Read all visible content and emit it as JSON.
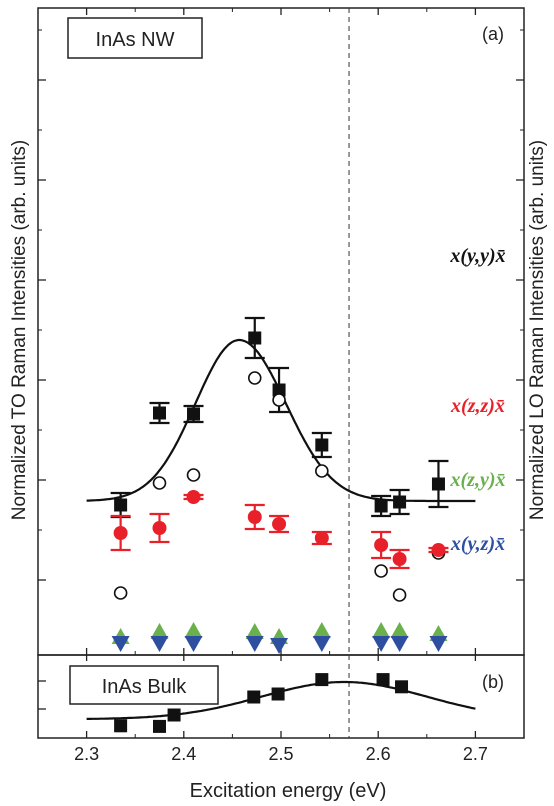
{
  "chart_data": [
    {
      "panel": "a",
      "type": "scatter",
      "panel_label": "(a)",
      "sample_label": "InAs NW",
      "ylabel_left": "Normalized TO Raman Intensities (arb. units)",
      "ylabel_right": "Normalized LO Raman Intensities (arb. units)",
      "xlim": [
        2.25,
        2.75
      ],
      "grid": false,
      "vertical_dashed_line_x": 2.57,
      "series": [
        {
          "name": "x(y,y)x̄",
          "marker": "filled-square",
          "color": "#111111",
          "points": [
            {
              "x": 2.335,
              "y": 0.75,
              "err": 0.12
            },
            {
              "x": 2.375,
              "y": 1.67,
              "err": 0.1
            },
            {
              "x": 2.41,
              "y": 1.66,
              "err": 0.08
            },
            {
              "x": 2.473,
              "y": 2.42,
              "err": 0.2
            },
            {
              "x": 2.498,
              "y": 1.9,
              "err": 0.22
            },
            {
              "x": 2.542,
              "y": 1.35,
              "err": 0.12
            },
            {
              "x": 2.603,
              "y": 0.74,
              "err": 0.1
            },
            {
              "x": 2.622,
              "y": 0.78,
              "err": 0.12
            },
            {
              "x": 2.662,
              "y": 0.96,
              "err": 0.23
            }
          ]
        },
        {
          "name": "x(y,y)x̄ (LO)",
          "marker": "open-circle",
          "color": "#111111",
          "points": [
            {
              "x": 2.335,
              "y": -0.13
            },
            {
              "x": 2.375,
              "y": 0.97
            },
            {
              "x": 2.41,
              "y": 1.05
            },
            {
              "x": 2.473,
              "y": 2.02
            },
            {
              "x": 2.498,
              "y": 1.8
            },
            {
              "x": 2.542,
              "y": 1.09
            },
            {
              "x": 2.603,
              "y": 0.09
            },
            {
              "x": 2.622,
              "y": -0.15
            },
            {
              "x": 2.662,
              "y": 0.27
            }
          ]
        },
        {
          "name": "x(z,z)x̄",
          "marker": "filled-circle",
          "color": "#e8202a",
          "points": [
            {
              "x": 2.335,
              "y": 0.47,
              "err": 0.17
            },
            {
              "x": 2.375,
              "y": 0.52,
              "err": 0.14
            },
            {
              "x": 2.41,
              "y": 0.83,
              "err": 0.02
            },
            {
              "x": 2.473,
              "y": 0.63,
              "err": 0.12
            },
            {
              "x": 2.498,
              "y": 0.56,
              "err": 0.08
            },
            {
              "x": 2.542,
              "y": 0.42,
              "err": 0.06
            },
            {
              "x": 2.603,
              "y": 0.35,
              "err": 0.13
            },
            {
              "x": 2.622,
              "y": 0.21,
              "err": 0.09
            },
            {
              "x": 2.662,
              "y": 0.3,
              "err": 0.02
            }
          ]
        },
        {
          "name": "x(z,y)x̄",
          "marker": "triangle-up",
          "color": "#6ab04c",
          "points": [
            {
              "x": 2.335,
              "y": -0.58
            },
            {
              "x": 2.375,
              "y": -0.53
            },
            {
              "x": 2.41,
              "y": -0.52
            },
            {
              "x": 2.473,
              "y": -0.53
            },
            {
              "x": 2.498,
              "y": -0.58
            },
            {
              "x": 2.542,
              "y": -0.52
            },
            {
              "x": 2.603,
              "y": -0.52
            },
            {
              "x": 2.622,
              "y": -0.52
            },
            {
              "x": 2.662,
              "y": -0.55
            }
          ]
        },
        {
          "name": "x(y,z)x̄",
          "marker": "triangle-down",
          "color": "#2e4fa0",
          "points": [
            {
              "x": 2.335,
              "y": -0.62
            },
            {
              "x": 2.375,
              "y": -0.62
            },
            {
              "x": 2.41,
              "y": -0.62
            },
            {
              "x": 2.473,
              "y": -0.62
            },
            {
              "x": 2.498,
              "y": -0.64
            },
            {
              "x": 2.542,
              "y": -0.62
            },
            {
              "x": 2.603,
              "y": -0.62
            },
            {
              "x": 2.622,
              "y": -0.62
            },
            {
              "x": 2.662,
              "y": -0.62
            }
          ]
        }
      ],
      "fit_curve": {
        "color": "#111111",
        "baseline": 0.79,
        "amplitude": 1.61,
        "center": 2.457,
        "left_width": 0.045,
        "right_width": 0.048,
        "x_range": [
          2.3,
          2.7
        ]
      },
      "series_labels": [
        {
          "text": "x(y,y)x̄",
          "color": "#111111"
        },
        {
          "text": "x(z,z)x̄",
          "color": "#e8202a"
        },
        {
          "text": "x(z,y)x̄",
          "color": "#6ab04c"
        },
        {
          "text": "x(y,z)x̄",
          "color": "#2e4fa0"
        }
      ]
    },
    {
      "panel": "b",
      "type": "scatter",
      "panel_label": "(b)",
      "sample_label": "InAs Bulk",
      "xlabel": "Excitation energy (eV)",
      "xlim": [
        2.25,
        2.75
      ],
      "xticks": [
        "2.3",
        "2.4",
        "2.5",
        "2.6",
        "2.7"
      ],
      "grid": false,
      "series": [
        {
          "name": "InAs Bulk",
          "marker": "filled-square",
          "color": "#111111",
          "points": [
            {
              "x": 2.335,
              "y": 0.07
            },
            {
              "x": 2.375,
              "y": 0.06
            },
            {
              "x": 2.39,
              "y": 0.25
            },
            {
              "x": 2.472,
              "y": 0.55
            },
            {
              "x": 2.497,
              "y": 0.6
            },
            {
              "x": 2.542,
              "y": 0.84
            },
            {
              "x": 2.605,
              "y": 0.84
            },
            {
              "x": 2.624,
              "y": 0.72
            }
          ]
        }
      ],
      "fit_curve": {
        "color": "#111111",
        "baseline": 0.18,
        "amplitude": 0.62,
        "center": 2.565,
        "width": 0.085,
        "x_range": [
          2.3,
          2.7
        ]
      }
    }
  ]
}
